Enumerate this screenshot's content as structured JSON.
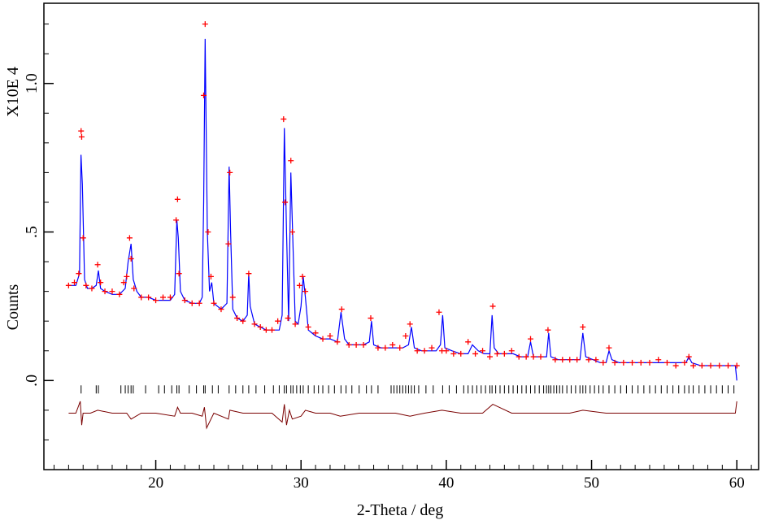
{
  "chart_data": {
    "type": "line",
    "title": "",
    "xlabel": "2-Theta /  deg",
    "ylabel": "Counts",
    "y_multiplier_label": "X10E  4",
    "xlim": [
      12.3,
      61.5
    ],
    "ylim": [
      -0.3,
      1.27
    ],
    "grid": false,
    "x_ticks": [
      20,
      30,
      40,
      50,
      60
    ],
    "x_tick_labels": [
      "20",
      "30",
      "40",
      "50",
      "60"
    ],
    "y_ticks": [
      0.0,
      0.5,
      1.0
    ],
    "y_tick_labels": [
      ".0",
      ".5",
      "1.0"
    ],
    "colors": {
      "observed": "#ff0000",
      "calculated": "#0000ff",
      "difference": "#7a0000",
      "reflection_ticks": "#000000",
      "axes": "#000000"
    },
    "series": [
      {
        "role": "observed",
        "marker": "plus",
        "x": [
          14.0,
          14.4,
          14.7,
          14.86,
          14.9,
          15.0,
          15.2,
          15.6,
          16.0,
          16.2,
          16.5,
          17.0,
          17.5,
          17.8,
          18.0,
          18.2,
          18.3,
          18.5,
          19.0,
          19.5,
          20.0,
          20.5,
          21.0,
          21.4,
          21.5,
          21.6,
          22.0,
          22.5,
          23.0,
          23.3,
          23.4,
          23.6,
          23.8,
          24.0,
          24.5,
          25.0,
          25.1,
          25.3,
          25.6,
          26.0,
          26.4,
          26.8,
          27.2,
          27.6,
          28.0,
          28.4,
          28.8,
          28.9,
          29.1,
          29.3,
          29.4,
          29.6,
          29.9,
          30.1,
          30.3,
          30.5,
          31.0,
          31.5,
          32.0,
          32.5,
          32.8,
          33.3,
          33.8,
          34.3,
          34.8,
          35.3,
          35.8,
          36.3,
          36.8,
          37.2,
          37.5,
          38.0,
          38.5,
          39.0,
          39.5,
          39.7,
          40.0,
          40.5,
          41.0,
          41.5,
          42.0,
          42.5,
          43.0,
          43.2,
          43.5,
          44.0,
          44.5,
          45.0,
          45.5,
          45.8,
          46.0,
          46.5,
          47.0,
          47.5,
          48.0,
          48.5,
          49.0,
          49.4,
          49.8,
          50.3,
          50.8,
          51.2,
          51.6,
          52.2,
          52.8,
          53.4,
          54.0,
          54.6,
          55.2,
          55.8,
          56.4,
          56.7,
          57.0,
          57.6,
          58.2,
          58.8,
          59.4,
          60.0
        ],
        "y": [
          0.32,
          0.33,
          0.36,
          0.84,
          0.82,
          0.48,
          0.32,
          0.31,
          0.39,
          0.33,
          0.3,
          0.3,
          0.29,
          0.33,
          0.35,
          0.48,
          0.41,
          0.31,
          0.28,
          0.28,
          0.27,
          0.28,
          0.28,
          0.54,
          0.61,
          0.36,
          0.27,
          0.26,
          0.26,
          0.96,
          1.2,
          0.5,
          0.35,
          0.26,
          0.24,
          0.46,
          0.7,
          0.28,
          0.21,
          0.2,
          0.36,
          0.19,
          0.18,
          0.17,
          0.17,
          0.2,
          0.88,
          0.6,
          0.21,
          0.74,
          0.5,
          0.19,
          0.32,
          0.35,
          0.3,
          0.18,
          0.16,
          0.14,
          0.15,
          0.13,
          0.24,
          0.12,
          0.12,
          0.12,
          0.21,
          0.11,
          0.11,
          0.12,
          0.11,
          0.15,
          0.19,
          0.1,
          0.1,
          0.11,
          0.23,
          0.1,
          0.1,
          0.09,
          0.09,
          0.13,
          0.09,
          0.1,
          0.08,
          0.25,
          0.09,
          0.09,
          0.1,
          0.08,
          0.08,
          0.14,
          0.08,
          0.08,
          0.17,
          0.07,
          0.07,
          0.07,
          0.07,
          0.18,
          0.07,
          0.07,
          0.06,
          0.11,
          0.06,
          0.06,
          0.06,
          0.06,
          0.06,
          0.07,
          0.06,
          0.05,
          0.06,
          0.08,
          0.05,
          0.05,
          0.05,
          0.05,
          0.05,
          0.05
        ]
      },
      {
        "role": "calculated",
        "x": [
          14.0,
          14.5,
          14.75,
          14.85,
          14.95,
          15.1,
          15.3,
          15.6,
          15.9,
          16.05,
          16.2,
          16.5,
          17.0,
          17.5,
          17.9,
          18.1,
          18.3,
          18.45,
          18.7,
          19.0,
          19.5,
          20.0,
          20.5,
          21.0,
          21.3,
          21.45,
          21.55,
          21.7,
          22.0,
          22.5,
          23.0,
          23.2,
          23.3,
          23.4,
          23.55,
          23.7,
          23.85,
          24.0,
          24.5,
          24.9,
          25.05,
          25.15,
          25.3,
          25.6,
          26.0,
          26.3,
          26.4,
          26.5,
          26.8,
          27.2,
          27.6,
          28.0,
          28.5,
          28.7,
          28.85,
          29.0,
          29.15,
          29.3,
          29.45,
          29.6,
          29.8,
          30.0,
          30.15,
          30.3,
          30.5,
          31.0,
          31.5,
          32.0,
          32.5,
          32.75,
          33.0,
          33.3,
          33.8,
          34.3,
          34.7,
          34.85,
          35.0,
          35.5,
          36.0,
          36.5,
          37.0,
          37.4,
          37.6,
          37.8,
          38.3,
          38.8,
          39.3,
          39.6,
          39.75,
          39.9,
          40.4,
          41.0,
          41.5,
          41.8,
          42.2,
          42.6,
          43.0,
          43.15,
          43.3,
          43.6,
          44.1,
          44.6,
          45.1,
          45.6,
          45.8,
          46.0,
          46.5,
          46.9,
          47.05,
          47.2,
          47.7,
          48.2,
          48.7,
          49.2,
          49.4,
          49.6,
          50.1,
          50.6,
          51.0,
          51.2,
          51.4,
          51.9,
          52.5,
          53.1,
          53.7,
          54.3,
          54.9,
          55.5,
          56.1,
          56.5,
          56.7,
          56.9,
          57.5,
          58.1,
          58.7,
          59.3,
          59.9,
          60.0
        ],
        "y": [
          0.32,
          0.32,
          0.36,
          0.76,
          0.66,
          0.34,
          0.31,
          0.31,
          0.32,
          0.37,
          0.31,
          0.3,
          0.29,
          0.29,
          0.31,
          0.4,
          0.46,
          0.34,
          0.3,
          0.28,
          0.28,
          0.27,
          0.27,
          0.27,
          0.29,
          0.54,
          0.48,
          0.3,
          0.27,
          0.26,
          0.26,
          0.28,
          0.6,
          1.15,
          0.5,
          0.3,
          0.33,
          0.26,
          0.24,
          0.26,
          0.72,
          0.5,
          0.24,
          0.21,
          0.2,
          0.22,
          0.36,
          0.25,
          0.19,
          0.18,
          0.17,
          0.17,
          0.17,
          0.22,
          0.85,
          0.5,
          0.2,
          0.7,
          0.45,
          0.2,
          0.19,
          0.25,
          0.35,
          0.28,
          0.17,
          0.15,
          0.14,
          0.14,
          0.13,
          0.23,
          0.14,
          0.12,
          0.12,
          0.12,
          0.13,
          0.2,
          0.12,
          0.11,
          0.11,
          0.11,
          0.11,
          0.12,
          0.18,
          0.11,
          0.1,
          0.1,
          0.1,
          0.12,
          0.22,
          0.11,
          0.1,
          0.09,
          0.09,
          0.12,
          0.1,
          0.09,
          0.09,
          0.22,
          0.11,
          0.09,
          0.09,
          0.09,
          0.08,
          0.08,
          0.13,
          0.08,
          0.08,
          0.08,
          0.16,
          0.08,
          0.07,
          0.07,
          0.07,
          0.07,
          0.16,
          0.08,
          0.07,
          0.06,
          0.06,
          0.1,
          0.07,
          0.06,
          0.06,
          0.06,
          0.06,
          0.06,
          0.06,
          0.06,
          0.06,
          0.06,
          0.08,
          0.06,
          0.05,
          0.05,
          0.05,
          0.05,
          0.05,
          0.0
        ]
      },
      {
        "role": "difference",
        "x": [
          14.0,
          14.5,
          14.8,
          14.9,
          15.0,
          15.5,
          16.0,
          17.0,
          18.0,
          18.3,
          19.0,
          20.0,
          21.3,
          21.5,
          21.7,
          22.5,
          23.2,
          23.35,
          23.5,
          24.0,
          25.0,
          25.1,
          26.0,
          27.0,
          28.0,
          28.7,
          28.85,
          29.0,
          29.2,
          29.4,
          30.0,
          30.3,
          31.0,
          32.0,
          32.7,
          34.0,
          35.0,
          36.5,
          37.5,
          38.5,
          39.7,
          41.0,
          42.5,
          43.2,
          44.5,
          46.0,
          47.0,
          48.5,
          49.4,
          51.0,
          53.0,
          55.0,
          56.7,
          58.0,
          59.9,
          60.0
        ],
        "y": [
          -0.11,
          -0.11,
          -0.07,
          -0.15,
          -0.11,
          -0.11,
          -0.1,
          -0.11,
          -0.11,
          -0.13,
          -0.11,
          -0.11,
          -0.12,
          -0.09,
          -0.11,
          -0.11,
          -0.12,
          -0.09,
          -0.16,
          -0.11,
          -0.13,
          -0.1,
          -0.11,
          -0.11,
          -0.11,
          -0.14,
          -0.08,
          -0.15,
          -0.1,
          -0.13,
          -0.12,
          -0.1,
          -0.11,
          -0.11,
          -0.12,
          -0.11,
          -0.11,
          -0.11,
          -0.12,
          -0.11,
          -0.1,
          -0.11,
          -0.11,
          -0.08,
          -0.11,
          -0.11,
          -0.11,
          -0.11,
          -0.1,
          -0.11,
          -0.11,
          -0.11,
          -0.11,
          -0.11,
          -0.11,
          -0.07
        ]
      }
    ],
    "reflections": {
      "y": -0.03,
      "x": [
        14.86,
        15.9,
        16.05,
        17.6,
        17.9,
        18.1,
        18.3,
        18.45,
        19.3,
        20.2,
        20.6,
        21.1,
        21.45,
        21.6,
        22.3,
        22.8,
        23.3,
        23.4,
        23.9,
        24.3,
        25.05,
        25.5,
        26.0,
        26.4,
        26.9,
        27.5,
        28.1,
        28.5,
        28.85,
        29.0,
        29.3,
        29.45,
        29.7,
        29.95,
        30.15,
        30.5,
        30.9,
        31.2,
        31.5,
        31.9,
        32.3,
        32.75,
        33.1,
        33.5,
        34.0,
        34.5,
        34.85,
        35.3,
        36.2,
        36.4,
        36.6,
        36.8,
        37.0,
        37.2,
        37.4,
        37.6,
        37.8,
        38.1,
        38.6,
        39.1,
        39.75,
        40.2,
        40.7,
        41.2,
        41.5,
        41.8,
        42.1,
        42.4,
        42.7,
        43.0,
        43.15,
        43.4,
        43.7,
        44.0,
        44.3,
        44.6,
        44.9,
        45.2,
        45.5,
        45.8,
        46.1,
        46.4,
        46.7,
        46.9,
        47.05,
        47.2,
        47.4,
        47.6,
        47.8,
        48.0,
        48.3,
        48.6,
        48.9,
        49.2,
        49.4,
        49.6,
        49.9,
        50.2,
        50.5,
        50.8,
        51.2,
        51.6,
        52.0,
        52.4,
        52.8,
        53.2,
        53.6,
        54.0,
        54.4,
        54.8,
        55.2,
        55.6,
        56.0,
        56.4,
        56.7,
        57.0,
        57.4,
        57.8,
        58.2,
        58.6,
        59.0,
        59.4,
        59.8
      ]
    }
  }
}
